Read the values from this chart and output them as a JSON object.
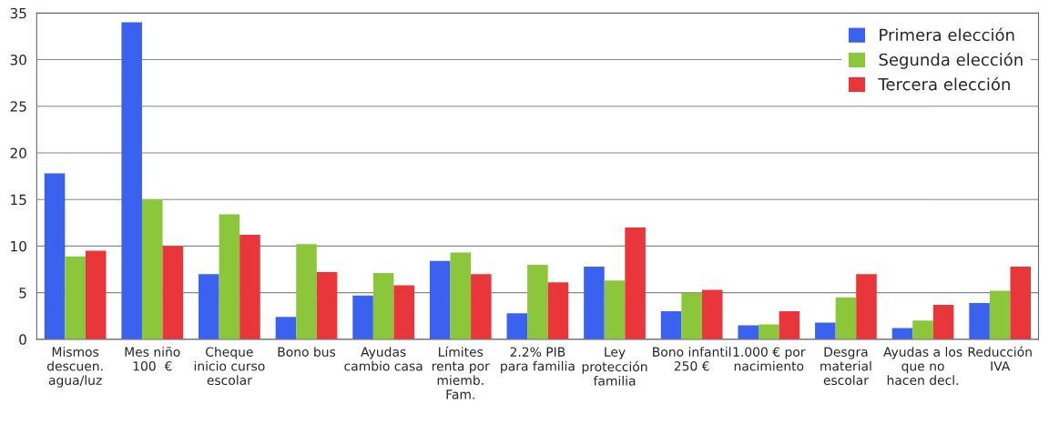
{
  "chart_data": {
    "type": "bar",
    "categories": [
      "Mismos\ndescuen.\nagua/luz",
      "Mes niño\n100  €",
      "Cheque\ninicio curso\nescolar",
      "Bono bus",
      "Ayudas\ncambio casa",
      "Límites\nrenta por\nmiemb.\nFam.",
      "2.2% PIB\npara familia",
      "Ley\nprotección\nfamilia",
      "Bono infantil\n250 €",
      "1.000 € por\nnacimiento",
      "Desgra\nmaterial\nescolar",
      "Ayudas a los\nque no\nhacen decl.",
      "Reducción\nIVA"
    ],
    "series": [
      {
        "name": "Primera elección",
        "color": "#3a62ee",
        "values": [
          17.8,
          34,
          7,
          2.4,
          4.7,
          8.4,
          2.8,
          7.8,
          3.0,
          1.5,
          1.8,
          1.2,
          3.9
        ]
      },
      {
        "name": "Segunda elección",
        "color": "#8cc63a",
        "values": [
          8.9,
          15,
          13.4,
          10.2,
          7.1,
          9.3,
          8.0,
          6.3,
          5.0,
          1.6,
          4.5,
          2.0,
          5.2
        ]
      },
      {
        "name": "Tercera elección",
        "color": "#e8363a",
        "values": [
          9.5,
          10,
          11.2,
          7.2,
          5.8,
          7.0,
          6.1,
          12.0,
          5.3,
          3.0,
          7.0,
          3.7,
          7.8
        ]
      }
    ],
    "ylim": [
      0,
      35
    ],
    "yticks": [
      0,
      5,
      10,
      15,
      20,
      25,
      30,
      35
    ],
    "grid": "y",
    "legend": "top right"
  }
}
